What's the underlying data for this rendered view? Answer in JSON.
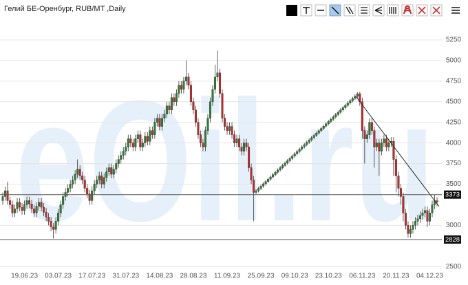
{
  "chart_data": {
    "type": "candlestick",
    "title": "Гелий БЕ-Оренбург, RUB/MT ,Daily",
    "watermark": "eOil.ru",
    "x": [
      "10.06.23",
      "11.06.23",
      "12.06.23",
      "13.06.23",
      "14.06.23",
      "15.06.23",
      "16.06.23",
      "17.06.23",
      "18.06.23",
      "19.06.23",
      "20.06.23",
      "21.06.23",
      "22.06.23",
      "23.06.23",
      "24.06.23",
      "25.06.23",
      "26.06.23",
      "27.06.23",
      "28.06.23",
      "29.06.23",
      "30.06.23",
      "01.07.23",
      "02.07.23",
      "03.07.23",
      "04.07.23",
      "05.07.23",
      "06.07.23",
      "07.07.23",
      "08.07.23",
      "09.07.23",
      "10.07.23",
      "11.07.23",
      "12.07.23",
      "13.07.23",
      "14.07.23",
      "15.07.23",
      "16.07.23",
      "17.07.23",
      "18.07.23",
      "19.07.23",
      "20.07.23",
      "21.07.23",
      "22.07.23",
      "23.07.23",
      "24.07.23",
      "25.07.23",
      "26.07.23",
      "27.07.23",
      "28.07.23",
      "29.07.23",
      "30.07.23",
      "31.07.23",
      "01.08.23",
      "02.08.23",
      "03.08.23",
      "04.08.23",
      "05.08.23",
      "06.08.23",
      "07.08.23",
      "08.08.23",
      "09.08.23",
      "10.08.23",
      "11.08.23",
      "12.08.23",
      "13.08.23",
      "14.08.23",
      "15.08.23",
      "16.08.23",
      "17.08.23",
      "18.08.23",
      "19.08.23",
      "20.08.23",
      "21.08.23",
      "22.08.23",
      "23.08.23",
      "24.08.23",
      "25.08.23",
      "26.08.23",
      "27.08.23",
      "28.08.23",
      "29.08.23",
      "30.08.23",
      "31.08.23",
      "01.09.23",
      "02.09.23",
      "03.09.23",
      "04.09.23",
      "05.09.23",
      "06.09.23",
      "07.09.23",
      "08.09.23",
      "09.09.23",
      "10.09.23",
      "11.09.23",
      "12.09.23",
      "13.09.23",
      "14.09.23",
      "15.09.23",
      "16.09.23",
      "17.09.23",
      "18.09.23",
      "19.09.23",
      "20.09.23",
      "21.09.23",
      "22.09.23",
      "23.09.23",
      "24.09.23",
      "25.09.23",
      "26.09.23",
      "27.09.23",
      "28.09.23",
      "29.09.23",
      "30.09.23",
      "01.10.23",
      "02.10.23",
      "03.10.23",
      "04.10.23",
      "05.10.23",
      "06.10.23",
      "07.10.23",
      "08.10.23",
      "09.10.23",
      "10.10.23",
      "11.10.23",
      "12.10.23",
      "13.10.23",
      "14.10.23",
      "15.10.23",
      "16.10.23",
      "17.10.23",
      "18.10.23",
      "19.10.23",
      "20.10.23",
      "21.10.23",
      "22.10.23",
      "23.10.23",
      "24.10.23",
      "25.10.23",
      "26.10.23",
      "27.10.23",
      "28.10.23",
      "29.10.23",
      "30.10.23",
      "31.10.23",
      "01.11.23",
      "02.11.23",
      "03.11.23",
      "04.11.23",
      "05.11.23",
      "06.11.23",
      "07.11.23",
      "08.11.23",
      "09.11.23",
      "10.11.23",
      "11.11.23",
      "12.11.23",
      "13.11.23",
      "14.11.23",
      "15.11.23",
      "16.11.23",
      "17.11.23",
      "18.11.23",
      "19.11.23",
      "20.11.23",
      "21.11.23",
      "22.11.23",
      "23.11.23",
      "24.11.23",
      "25.11.23",
      "26.11.23",
      "27.11.23",
      "28.11.23",
      "29.11.23",
      "30.11.23",
      "01.12.23",
      "02.12.23",
      "03.12.23",
      "04.12.23",
      "05.12.23",
      "06.12.23",
      "07.12.23"
    ],
    "open": [
      3300,
      3350,
      3420,
      3300,
      3250,
      3150,
      3200,
      3280,
      3220,
      3180,
      3250,
      3300,
      3260,
      3200,
      3150,
      3230,
      3280,
      3220,
      3160,
      3100,
      3050,
      2980,
      2950,
      3050,
      3150,
      3250,
      3350,
      3400,
      3450,
      3500,
      3550,
      3620,
      3680,
      3600,
      3550,
      3450,
      3380,
      3300,
      3420,
      3500,
      3550,
      3600,
      3500,
      3580,
      3650,
      3700,
      3620,
      3680,
      3750,
      3800,
      3850,
      3900,
      3950,
      4050,
      4000,
      3950,
      4050,
      4100,
      3950,
      4000,
      4080,
      4020,
      4150,
      4100,
      4250,
      4300,
      4200,
      4300,
      4350,
      4450,
      4400,
      4550,
      4500,
      4600,
      4700,
      4650,
      4750,
      4800,
      4700,
      4500,
      4400,
      4250,
      4100,
      4000,
      3950,
      4150,
      4300,
      4500,
      4650,
      4800,
      4850,
      4600,
      4300,
      4200,
      4150,
      4200,
      4100,
      4000,
      4050,
      3950,
      3900,
      4000,
      3950,
      3700,
      3550,
      3400,
      3420,
      3448,
      3476,
      3504,
      3532,
      3560,
      3588,
      3616,
      3644,
      3672,
      3700,
      3728,
      3756,
      3784,
      3812,
      3840,
      3868,
      3896,
      3924,
      3952,
      3980,
      4008,
      4036,
      4064,
      4092,
      4120,
      4148,
      4176,
      4204,
      4232,
      4260,
      4288,
      4316,
      4344,
      4372,
      4400,
      4428,
      4456,
      4484,
      4512,
      4540,
      4568,
      4596,
      4500,
      4150,
      4050,
      4100,
      4250,
      4150,
      3950,
      4000,
      3900,
      4000,
      4050,
      3950,
      4000,
      4020,
      3800,
      3600,
      3450,
      3350,
      3150,
      3000,
      2900,
      2950,
      3000,
      3050,
      3080,
      3120,
      3150,
      3180,
      3050,
      3150,
      3250,
      3300
    ],
    "high": [
      3400,
      3470,
      3530,
      3350,
      3300,
      3250,
      3330,
      3330,
      3270,
      3300,
      3350,
      3350,
      3310,
      3250,
      3280,
      3330,
      3330,
      3270,
      3210,
      3150,
      3100,
      3030,
      3100,
      3200,
      3300,
      3400,
      3450,
      3500,
      3550,
      3600,
      3670,
      3800,
      3730,
      3650,
      3600,
      3500,
      3430,
      3470,
      3550,
      3600,
      3650,
      3650,
      3630,
      3700,
      3750,
      3750,
      3730,
      3800,
      3850,
      3900,
      3950,
      4000,
      4100,
      4100,
      4050,
      4100,
      4150,
      4150,
      4050,
      4130,
      4130,
      4200,
      4200,
      4300,
      4350,
      4350,
      4350,
      4400,
      4500,
      4500,
      4600,
      4600,
      4650,
      4750,
      4750,
      4800,
      5000,
      4850,
      4750,
      4550,
      4450,
      4300,
      4150,
      4050,
      4200,
      4350,
      4550,
      4700,
      4950,
      5120,
      4900,
      4650,
      4350,
      4250,
      4250,
      4250,
      4150,
      4100,
      4100,
      4000,
      4050,
      4050,
      4000,
      3750,
      3600,
      3440,
      3468,
      3496,
      3524,
      3552,
      3580,
      3608,
      3636,
      3664,
      3692,
      3720,
      3748,
      3776,
      3804,
      3832,
      3860,
      3888,
      3916,
      3944,
      3972,
      4000,
      4028,
      4056,
      4084,
      4112,
      4140,
      4168,
      4196,
      4224,
      4252,
      4280,
      4308,
      4336,
      4364,
      4392,
      4420,
      4448,
      4476,
      4504,
      4532,
      4560,
      4588,
      4616,
      4620,
      4550,
      4200,
      4150,
      4300,
      4300,
      4200,
      4050,
      4050,
      4050,
      4100,
      4100,
      4050,
      4070,
      4070,
      3850,
      3650,
      3500,
      3400,
      3200,
      3050,
      3000,
      3050,
      3100,
      3130,
      3170,
      3200,
      3230,
      3230,
      3200,
      3300,
      3370,
      3340
    ],
    "low": [
      3250,
      3300,
      3250,
      3200,
      3100,
      3100,
      3150,
      3170,
      3130,
      3130,
      3200,
      3210,
      3150,
      3100,
      3100,
      3180,
      3170,
      3110,
      3050,
      3000,
      2930,
      2840,
      2900,
      3000,
      3100,
      3200,
      3300,
      3350,
      3400,
      3450,
      3500,
      3570,
      3550,
      3500,
      3400,
      3330,
      3250,
      3250,
      3370,
      3450,
      3500,
      3450,
      3450,
      3530,
      3600,
      3570,
      3570,
      3630,
      3700,
      3750,
      3800,
      3850,
      3900,
      3950,
      3900,
      3900,
      4000,
      3900,
      3900,
      3950,
      3970,
      3970,
      4050,
      4050,
      4200,
      4150,
      4150,
      4250,
      4300,
      4350,
      4350,
      4450,
      4450,
      4550,
      4600,
      4600,
      4700,
      4650,
      4450,
      4350,
      4200,
      4050,
      3950,
      3900,
      3900,
      4100,
      4250,
      4450,
      4600,
      4750,
      4550,
      4250,
      4150,
      4100,
      4100,
      4050,
      3950,
      3950,
      3900,
      3850,
      3850,
      3900,
      3650,
      3500,
      3050,
      3380,
      3400,
      3428,
      3456,
      3484,
      3512,
      3540,
      3568,
      3596,
      3624,
      3652,
      3680,
      3708,
      3736,
      3764,
      3792,
      3820,
      3848,
      3876,
      3904,
      3932,
      3960,
      3988,
      4016,
      4044,
      4072,
      4100,
      4128,
      4156,
      4184,
      4212,
      4240,
      4268,
      4296,
      4324,
      4352,
      4380,
      4408,
      4436,
      4464,
      4492,
      4520,
      4548,
      4450,
      4050,
      3750,
      4000,
      4050,
      4100,
      3700,
      3900,
      3600,
      3850,
      3950,
      3900,
      3900,
      3950,
      3600,
      3400,
      3350,
      3250,
      3050,
      2950,
      2850,
      2850,
      2900,
      2950,
      3000,
      3030,
      3070,
      3100,
      2980,
      3000,
      3100,
      3200,
      3230
    ],
    "close": [
      3350,
      3420,
      3300,
      3250,
      3150,
      3200,
      3280,
      3220,
      3180,
      3250,
      3300,
      3260,
      3200,
      3150,
      3230,
      3280,
      3220,
      3160,
      3100,
      3050,
      2980,
      2950,
      3050,
      3150,
      3250,
      3350,
      3400,
      3450,
      3500,
      3550,
      3620,
      3680,
      3600,
      3550,
      3450,
      3380,
      3300,
      3420,
      3500,
      3550,
      3600,
      3500,
      3580,
      3650,
      3700,
      3620,
      3680,
      3750,
      3800,
      3850,
      3900,
      3950,
      4050,
      4000,
      3950,
      4050,
      4100,
      3950,
      4000,
      4080,
      4020,
      4150,
      4100,
      4250,
      4300,
      4200,
      4300,
      4350,
      4450,
      4400,
      4550,
      4500,
      4600,
      4700,
      4650,
      4750,
      4800,
      4700,
      4500,
      4400,
      4250,
      4100,
      4000,
      3950,
      4150,
      4300,
      4500,
      4650,
      4800,
      4850,
      4600,
      4300,
      4200,
      4150,
      4200,
      4100,
      4000,
      4050,
      3950,
      3900,
      4000,
      3950,
      3700,
      3550,
      3400,
      3420,
      3448,
      3476,
      3504,
      3532,
      3560,
      3588,
      3616,
      3644,
      3672,
      3700,
      3728,
      3756,
      3784,
      3812,
      3840,
      3868,
      3896,
      3924,
      3952,
      3980,
      4008,
      4036,
      4064,
      4092,
      4120,
      4148,
      4176,
      4204,
      4232,
      4260,
      4288,
      4316,
      4344,
      4372,
      4400,
      4428,
      4456,
      4484,
      4512,
      4540,
      4568,
      4596,
      4500,
      4150,
      4050,
      4100,
      4250,
      4150,
      3950,
      4000,
      3900,
      4000,
      4050,
      3950,
      4000,
      4020,
      3800,
      3600,
      3450,
      3350,
      3150,
      3000,
      2900,
      2950,
      3000,
      3050,
      3080,
      3120,
      3150,
      3180,
      3050,
      3150,
      3250,
      3300,
      3280
    ],
    "up_color": "#2e7d32",
    "down_color": "#c62828",
    "xticks": [
      "19.06.23",
      "03.07.23",
      "17.07.23",
      "31.07.23",
      "14.08.23",
      "28.08.23",
      "11.09.23",
      "25.09.23",
      "09.10.23",
      "23.10.23",
      "06.11.23",
      "20.11.23",
      "04.12.23"
    ],
    "ylim": [
      2460,
      5400
    ],
    "yticks": [
      2500,
      3000,
      3500,
      3750,
      4000,
      4250,
      4500,
      4750,
      5000,
      5250
    ],
    "hlines": [
      3373,
      2828
    ],
    "grid": true
  }
}
